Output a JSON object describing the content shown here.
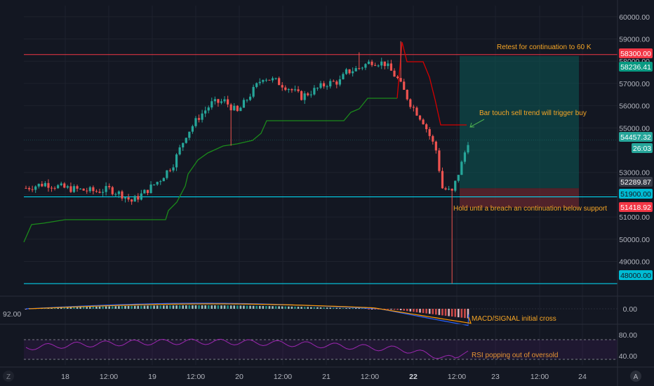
{
  "chart_data": {
    "type": "candlestick",
    "price_axis": {
      "min": 47500,
      "max": 60500,
      "ticks": [
        60000,
        59000,
        58000,
        57000,
        56000,
        55000,
        54000,
        53000,
        52000,
        51000,
        50000,
        49000,
        48000
      ],
      "tick_labels": [
        "60000.00",
        "59000.00",
        "58000.00",
        "57000.00",
        "56000.00",
        "55000.00",
        "",
        "53000.00",
        "",
        "51000.00",
        "50000.00",
        "49000.00",
        ""
      ]
    },
    "time_axis": {
      "labels": [
        "18",
        "12:00",
        "19",
        "12:00",
        "20",
        "12:00",
        "21",
        "12:00",
        "22",
        "12:00",
        "23",
        "12:00",
        "24"
      ]
    },
    "price_badges": [
      {
        "value": "58300.00",
        "color": "#f23645"
      },
      {
        "value": "58236.41",
        "color": "#089981"
      },
      {
        "value": "54457.32",
        "color": "#26a69a"
      },
      {
        "value": "26:03",
        "color": "#26a69a"
      },
      {
        "value": "52289.87",
        "color": "#363a45"
      },
      {
        "value": "51900.00",
        "color": "#00bcd4"
      },
      {
        "value": "51418.92",
        "color": "#f23645"
      },
      {
        "value": "48000.00",
        "color": "#00bcd4"
      }
    ],
    "horizontal_lines": [
      {
        "price": 58300,
        "color": "#f23645"
      },
      {
        "price": 51900,
        "color": "#00e5ff"
      },
      {
        "price": 48000,
        "color": "#00e5ff"
      },
      {
        "price": 54457.32,
        "color": "#26a69a"
      }
    ],
    "annotations": [
      {
        "text": "Retest for continuation to 60 K",
        "color": "#f7a625"
      },
      {
        "text": "Bar touch sell trend will trigger buy",
        "color": "#f7a625"
      },
      {
        "text": "Hold until a breach an continuation below support",
        "color": "#f7a625"
      },
      {
        "text": "MACD/SIGNAL initial cross",
        "color": "#f7a625"
      },
      {
        "text": "RSI popping out of oversold",
        "color": "#f7a625"
      }
    ],
    "macd_axis": {
      "tick_labels": [
        "0.00"
      ],
      "left_value": "92.00"
    },
    "rsi_axis": {
      "tick_labels": [
        "80.00",
        "40.00"
      ]
    },
    "colors": {
      "up": "#26a69a",
      "down": "#ef5350",
      "trend_up": "#1b8a1b",
      "trend_down": "#d50000",
      "macd": "#2962ff",
      "signal": "#ff9800",
      "rsi": "#9c27b0"
    },
    "axis_button": "A",
    "corner_button": "Z"
  }
}
